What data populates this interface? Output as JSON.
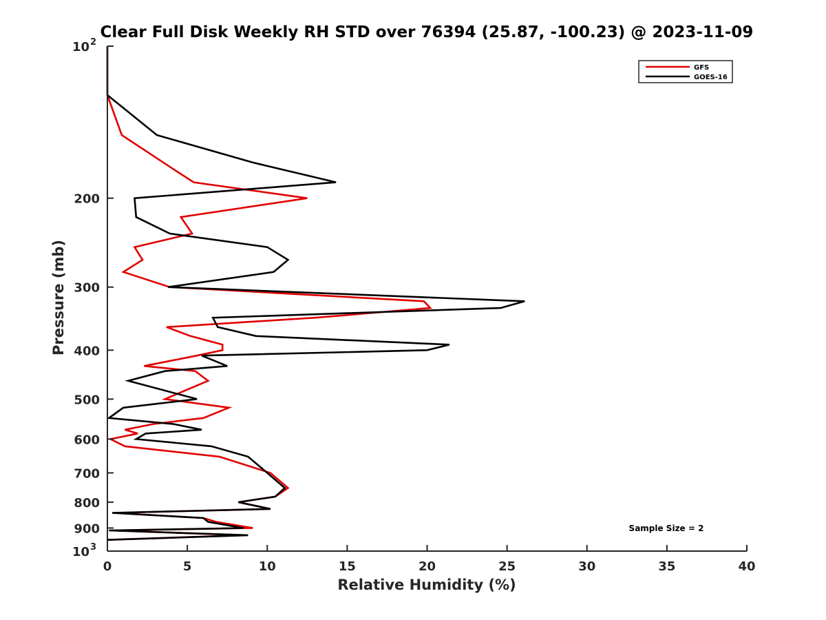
{
  "chart_data": {
    "type": "line",
    "title": "Clear Full Disk Weekly RH STD over 76394 (25.87, -100.23) @ 2023-11-09",
    "xlabel": "Relative Humidity (%)",
    "ylabel": "Pressure (mb)",
    "xlim": [
      0,
      40
    ],
    "ylim": [
      100,
      1000
    ],
    "y_scale": "log",
    "y_reversed": true,
    "x_ticks": [
      "0",
      "5",
      "10",
      "15",
      "20",
      "25",
      "30",
      "35",
      "40"
    ],
    "y_ticks": [
      {
        "value": 100,
        "label": "10",
        "exp": "2"
      },
      {
        "value": 200,
        "label": "200"
      },
      {
        "value": 300,
        "label": "300"
      },
      {
        "value": 400,
        "label": "400"
      },
      {
        "value": 500,
        "label": "500"
      },
      {
        "value": 600,
        "label": "600"
      },
      {
        "value": 700,
        "label": "700"
      },
      {
        "value": 800,
        "label": "800"
      },
      {
        "value": 900,
        "label": "900"
      },
      {
        "value": 1000,
        "label": "10",
        "exp": "3"
      }
    ],
    "legend_position": "top-right",
    "annotation": "Sample Size = 2",
    "series": [
      {
        "name": "GFS",
        "color": "#e00000",
        "points": [
          [
            0.0,
            100
          ],
          [
            0.0,
            125
          ],
          [
            0.9,
            150
          ],
          [
            4.1,
            175
          ],
          [
            5.4,
            186
          ],
          [
            12.5,
            200
          ],
          [
            4.6,
            218
          ],
          [
            5.3,
            235
          ],
          [
            1.7,
            250
          ],
          [
            2.2,
            265
          ],
          [
            1.0,
            280
          ],
          [
            3.9,
            300
          ],
          [
            19.8,
            320
          ],
          [
            20.2,
            330
          ],
          [
            13.0,
            345
          ],
          [
            3.7,
            360
          ],
          [
            5.2,
            375
          ],
          [
            7.2,
            390
          ],
          [
            7.2,
            400
          ],
          [
            5.6,
            410
          ],
          [
            2.3,
            430
          ],
          [
            5.5,
            440
          ],
          [
            6.3,
            460
          ],
          [
            3.6,
            500
          ],
          [
            7.6,
            520
          ],
          [
            6.0,
            545
          ],
          [
            2.9,
            560
          ],
          [
            1.1,
            575
          ],
          [
            1.9,
            585
          ],
          [
            0.2,
            600
          ],
          [
            1.1,
            620
          ],
          [
            7.0,
            650
          ],
          [
            10.2,
            700
          ],
          [
            11.3,
            750
          ],
          [
            10.5,
            780
          ],
          [
            8.2,
            800
          ],
          [
            10.2,
            825
          ],
          [
            0.4,
            840
          ],
          [
            6.0,
            860
          ],
          [
            6.8,
            875
          ],
          [
            9.1,
            900
          ],
          [
            0.2,
            910
          ],
          [
            8.6,
            930
          ],
          [
            0.0,
            950
          ]
        ]
      },
      {
        "name": "GOES-16",
        "color": "#000000",
        "points": [
          [
            0.0,
            100
          ],
          [
            0.0,
            125
          ],
          [
            3.1,
            150
          ],
          [
            9.1,
            170
          ],
          [
            14.3,
            186
          ],
          [
            1.7,
            200
          ],
          [
            1.8,
            218
          ],
          [
            3.9,
            235
          ],
          [
            10.0,
            250
          ],
          [
            11.3,
            265
          ],
          [
            10.4,
            280
          ],
          [
            3.8,
            300
          ],
          [
            26.1,
            320
          ],
          [
            24.6,
            330
          ],
          [
            6.6,
            345
          ],
          [
            6.9,
            360
          ],
          [
            9.3,
            375
          ],
          [
            21.4,
            390
          ],
          [
            20.0,
            400
          ],
          [
            5.9,
            410
          ],
          [
            7.5,
            430
          ],
          [
            3.6,
            440
          ],
          [
            1.3,
            460
          ],
          [
            5.6,
            500
          ],
          [
            1.0,
            520
          ],
          [
            0.1,
            545
          ],
          [
            4.1,
            560
          ],
          [
            5.9,
            575
          ],
          [
            2.4,
            585
          ],
          [
            1.8,
            600
          ],
          [
            6.5,
            620
          ],
          [
            8.8,
            650
          ],
          [
            10.0,
            700
          ],
          [
            11.1,
            750
          ],
          [
            10.5,
            780
          ],
          [
            8.2,
            800
          ],
          [
            10.2,
            825
          ],
          [
            0.3,
            840
          ],
          [
            6.0,
            860
          ],
          [
            6.3,
            875
          ],
          [
            8.5,
            900
          ],
          [
            0.1,
            910
          ],
          [
            8.8,
            930
          ],
          [
            0.0,
            950
          ]
        ]
      }
    ]
  }
}
